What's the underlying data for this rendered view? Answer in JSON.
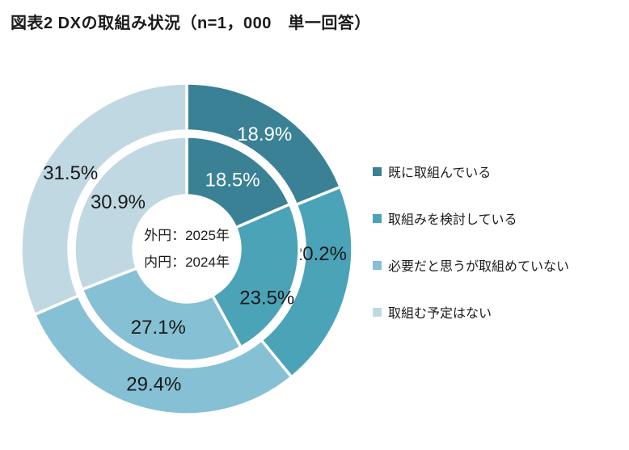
{
  "title": "図表2 DXの取組み状況（n=1，000　単一回答）",
  "chart_data": {
    "type": "pie",
    "subtype": "nested-donut",
    "title": "図表2 DXの取組み状況（n=1，000　単一回答）",
    "categories": [
      "既に取組んでいる",
      "取組みを検討している",
      "必要だと思うが取組めていない",
      "取組む予定はない"
    ],
    "series": [
      {
        "name": "2025年",
        "ring": "outer",
        "values": [
          18.9,
          20.2,
          29.4,
          31.5
        ]
      },
      {
        "name": "2024年",
        "ring": "inner",
        "values": [
          18.5,
          23.5,
          27.1,
          30.9
        ]
      }
    ],
    "unit": "%",
    "colors": [
      "#3A8195",
      "#4BA3B8",
      "#85C0D4",
      "#C0D8E2"
    ],
    "label_colors": [
      "#FFFFFF",
      "#1A1A1A",
      "#1A1A1A",
      "#1A1A1A"
    ],
    "center_note_lines": [
      "外円：2025年",
      "内円：2024年"
    ],
    "start_angle_deg": 0,
    "direction": "clockwise",
    "legend_position": "right",
    "grid": false
  }
}
